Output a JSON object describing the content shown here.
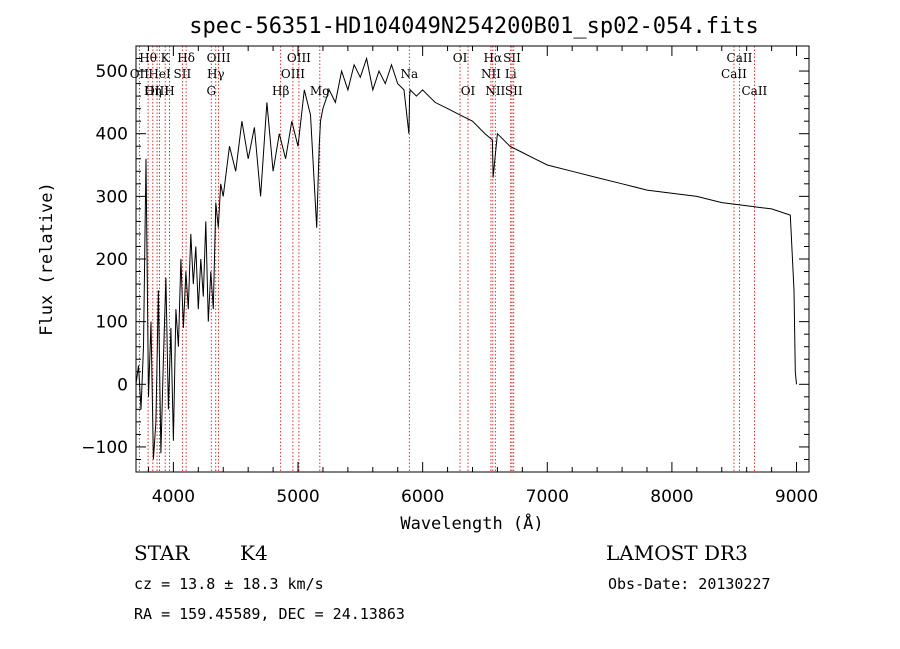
{
  "chart_data": {
    "type": "line",
    "title": "spec-56351-HD104049N254200B01_sp02-054.fits",
    "xlabel": "Wavelength (Å)",
    "ylabel": "Flux (relative)",
    "xlim": [
      3700,
      9100
    ],
    "ylim": [
      -140,
      540
    ],
    "xticks": [
      4000,
      5000,
      6000,
      7000,
      8000,
      9000
    ],
    "yticks": [
      -100,
      0,
      100,
      200,
      300,
      400,
      500
    ],
    "series": [
      {
        "name": "flux",
        "x": [
          3700,
          3720,
          3740,
          3760,
          3780,
          3800,
          3820,
          3840,
          3860,
          3880,
          3900,
          3920,
          3940,
          3960,
          3980,
          4000,
          4020,
          4040,
          4060,
          4080,
          4100,
          4120,
          4140,
          4160,
          4180,
          4200,
          4220,
          4240,
          4260,
          4280,
          4300,
          4320,
          4340,
          4360,
          4380,
          4400,
          4450,
          4500,
          4550,
          4600,
          4650,
          4700,
          4750,
          4800,
          4850,
          4900,
          4950,
          5000,
          5050,
          5100,
          5150,
          5170,
          5180,
          5200,
          5250,
          5300,
          5350,
          5400,
          5450,
          5500,
          5550,
          5600,
          5650,
          5700,
          5750,
          5800,
          5850,
          5890,
          5895,
          5900,
          5950,
          6000,
          6100,
          6200,
          6300,
          6400,
          6500,
          6560,
          6565,
          6600,
          6700,
          6800,
          6900,
          7000,
          7200,
          7400,
          7600,
          7800,
          8000,
          8200,
          8400,
          8600,
          8800,
          8950,
          8980,
          8990,
          9000
        ],
        "values": [
          0,
          30,
          -40,
          60,
          360,
          -20,
          100,
          -120,
          -60,
          150,
          -110,
          40,
          170,
          -40,
          90,
          -90,
          120,
          60,
          200,
          90,
          180,
          120,
          240,
          160,
          220,
          120,
          200,
          140,
          260,
          100,
          180,
          120,
          290,
          250,
          320,
          300,
          380,
          340,
          420,
          360,
          410,
          300,
          450,
          340,
          400,
          360,
          420,
          380,
          470,
          430,
          250,
          380,
          420,
          440,
          470,
          450,
          500,
          470,
          510,
          490,
          520,
          470,
          500,
          480,
          510,
          480,
          470,
          400,
          460,
          470,
          460,
          470,
          450,
          440,
          430,
          420,
          400,
          390,
          330,
          400,
          380,
          370,
          360,
          350,
          340,
          330,
          320,
          310,
          305,
          300,
          290,
          285,
          280,
          270,
          150,
          20,
          0
        ]
      }
    ],
    "spectral_lines": [
      {
        "label": "Hθ",
        "x": 3797,
        "row": 1
      },
      {
        "label": "OII",
        "x": 3727,
        "row": 2
      },
      {
        "label": "OIII",
        "x": 3869,
        "row": 3
      },
      {
        "label": "K",
        "x": 3934,
        "row": 1
      },
      {
        "label": "HeI",
        "x": 3889,
        "row": 2
      },
      {
        "label": "Hη",
        "x": 3835,
        "row": 3
      },
      {
        "label": "SII",
        "x": 4072,
        "row": 2
      },
      {
        "label": "H",
        "x": 3969,
        "row": 3
      },
      {
        "label": "Hδ",
        "x": 4102,
        "row": 1
      },
      {
        "label": "OIII",
        "x": 4363,
        "row": 1
      },
      {
        "label": "Hγ",
        "x": 4340,
        "row": 2
      },
      {
        "label": "G",
        "x": 4304,
        "row": 3
      },
      {
        "label": "Hβ",
        "x": 4861,
        "row": 3
      },
      {
        "label": "OIII",
        "x": 5007,
        "row": 1
      },
      {
        "label": "OIII",
        "x": 4959,
        "row": 2
      },
      {
        "label": "Mg",
        "x": 5175,
        "row": 3
      },
      {
        "label": "Na",
        "x": 5893,
        "row": 2
      },
      {
        "label": "OI",
        "x": 6300,
        "row": 1
      },
      {
        "label": "OI",
        "x": 6364,
        "row": 3
      },
      {
        "label": "Hα",
        "x": 6563,
        "row": 1
      },
      {
        "label": "NII",
        "x": 6548,
        "row": 2
      },
      {
        "label": "NII",
        "x": 6583,
        "row": 3
      },
      {
        "label": "SII",
        "x": 6717,
        "row": 1
      },
      {
        "label": "Li",
        "x": 6707,
        "row": 2
      },
      {
        "label": "SII",
        "x": 6731,
        "row": 3
      },
      {
        "label": "CaII",
        "x": 8542,
        "row": 1
      },
      {
        "label": "CaII",
        "x": 8498,
        "row": 2
      },
      {
        "label": "CaII",
        "x": 8662,
        "row": 3
      }
    ]
  },
  "footer": {
    "object_class": "STAR",
    "subclass": "K4",
    "survey": "LAMOST DR3",
    "cz": "cz = 13.8 ± 18.3 km/s",
    "obs_date": "Obs-Date: 20130227",
    "coords": "RA = 159.45589, DEC =  24.13863"
  },
  "colors": {
    "line_marker": "#cc0000",
    "spectrum": "#000000"
  }
}
